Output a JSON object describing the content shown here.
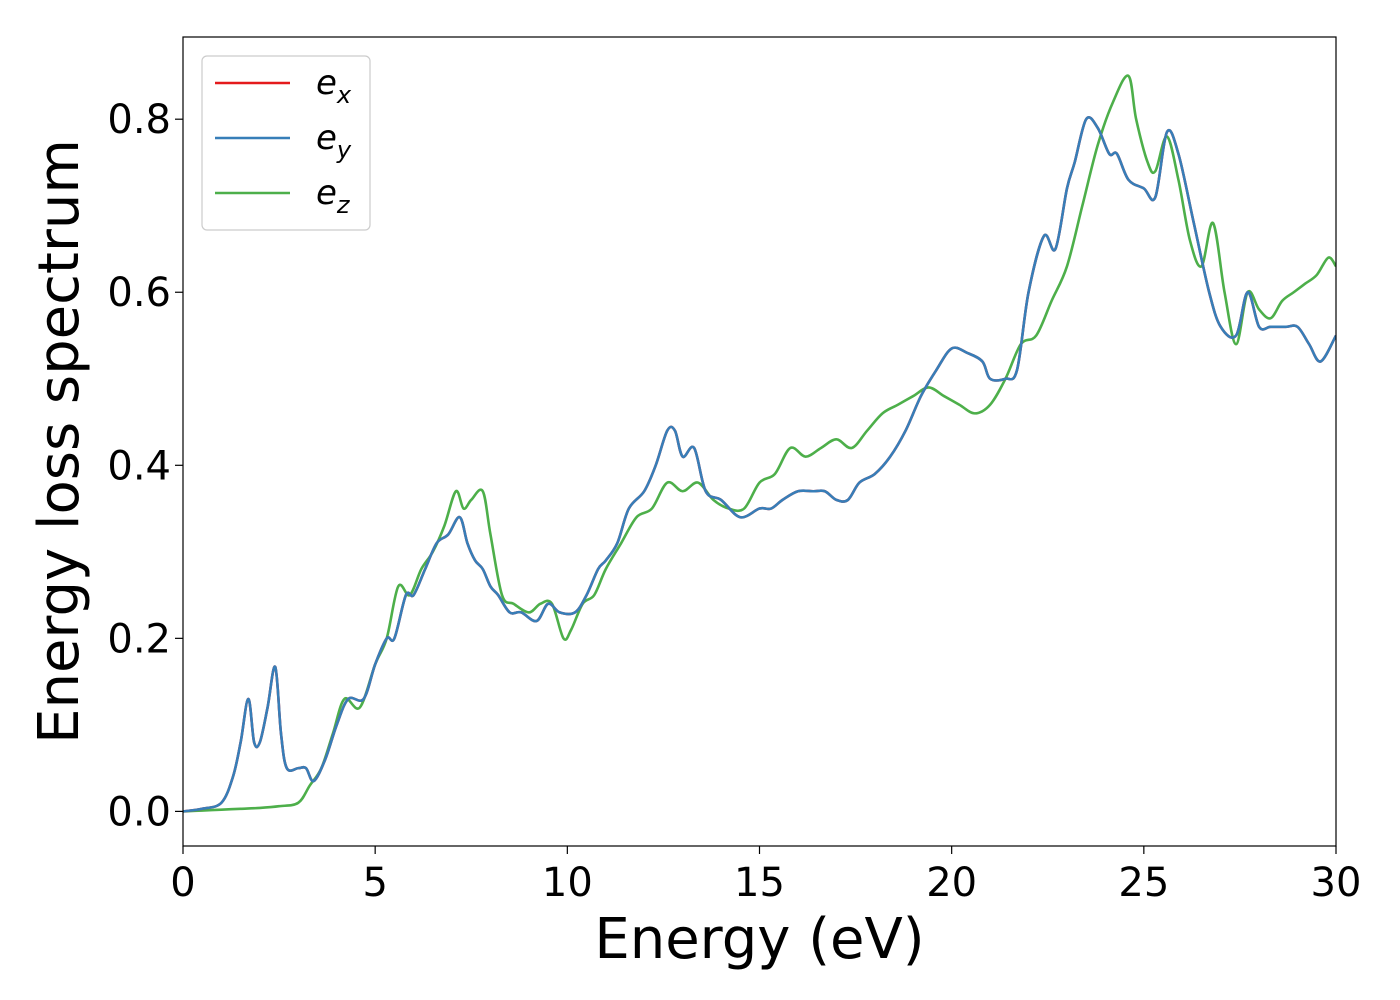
{
  "chart_data": {
    "type": "line",
    "xlabel": "Energy (eV)",
    "ylabel": "Energy loss spectrum",
    "xlim": [
      0,
      30
    ],
    "ylim": [
      -0.04,
      0.895
    ],
    "xticks": [
      0,
      5,
      10,
      15,
      20,
      25,
      30
    ],
    "xtick_labels": [
      "0",
      "5",
      "10",
      "15",
      "20",
      "25",
      "30"
    ],
    "yticks": [
      0.0,
      0.2,
      0.4,
      0.6,
      0.8
    ],
    "ytick_labels": [
      "0.0",
      "0.2",
      "0.4",
      "0.6",
      "0.8"
    ],
    "grid": false,
    "legend_position": "top-left",
    "series": [
      {
        "name": "e",
        "subscript": "x",
        "color": "#e41a1c",
        "x": [
          0,
          0.5,
          1.0,
          1.3,
          1.5,
          1.7,
          1.85,
          2.0,
          2.2,
          2.4,
          2.55,
          2.7,
          3.0,
          3.2,
          3.4,
          3.7,
          4.0,
          4.3,
          4.7,
          5.0,
          5.3,
          5.5,
          5.8,
          6.0,
          6.3,
          6.6,
          6.9,
          7.2,
          7.4,
          7.6,
          7.8,
          8.0,
          8.2,
          8.5,
          8.8,
          9.2,
          9.5,
          9.8,
          10.2,
          10.5,
          10.8,
          11.0,
          11.3,
          11.6,
          12.0,
          12.3,
          12.6,
          12.8,
          13.0,
          13.3,
          13.6,
          14.0,
          14.5,
          15.0,
          15.3,
          15.6,
          16.0,
          16.4,
          16.7,
          17.0,
          17.3,
          17.6,
          18.0,
          18.4,
          18.8,
          19.2,
          19.6,
          20.0,
          20.4,
          20.8,
          21.0,
          21.4,
          21.7,
          22.0,
          22.4,
          22.7,
          23.0,
          23.2,
          23.5,
          23.8,
          24.1,
          24.3,
          24.6,
          25.0,
          25.3,
          25.6,
          25.9,
          26.3,
          26.7,
          27.0,
          27.4,
          27.7,
          28.0,
          28.3,
          28.7,
          29.0,
          29.3,
          29.6,
          30.0
        ],
        "values": [
          0.0,
          0.003,
          0.01,
          0.04,
          0.08,
          0.13,
          0.08,
          0.08,
          0.12,
          0.167,
          0.09,
          0.05,
          0.05,
          0.05,
          0.035,
          0.06,
          0.1,
          0.13,
          0.13,
          0.17,
          0.2,
          0.2,
          0.25,
          0.25,
          0.28,
          0.31,
          0.32,
          0.34,
          0.31,
          0.29,
          0.28,
          0.26,
          0.25,
          0.23,
          0.23,
          0.22,
          0.24,
          0.23,
          0.23,
          0.25,
          0.28,
          0.29,
          0.31,
          0.35,
          0.37,
          0.4,
          0.44,
          0.44,
          0.41,
          0.42,
          0.37,
          0.36,
          0.34,
          0.35,
          0.35,
          0.36,
          0.37,
          0.37,
          0.37,
          0.36,
          0.36,
          0.38,
          0.39,
          0.41,
          0.44,
          0.48,
          0.51,
          0.535,
          0.53,
          0.52,
          0.5,
          0.5,
          0.51,
          0.6,
          0.665,
          0.65,
          0.72,
          0.75,
          0.8,
          0.79,
          0.76,
          0.76,
          0.73,
          0.72,
          0.71,
          0.785,
          0.76,
          0.68,
          0.6,
          0.56,
          0.55,
          0.6,
          0.56,
          0.56,
          0.56,
          0.56,
          0.54,
          0.52,
          0.55
        ]
      },
      {
        "name": "e",
        "subscript": "y",
        "color": "#377eb8",
        "x": [
          0,
          0.5,
          1.0,
          1.3,
          1.5,
          1.7,
          1.85,
          2.0,
          2.2,
          2.4,
          2.55,
          2.7,
          3.0,
          3.2,
          3.4,
          3.7,
          4.0,
          4.3,
          4.7,
          5.0,
          5.3,
          5.5,
          5.8,
          6.0,
          6.3,
          6.6,
          6.9,
          7.2,
          7.4,
          7.6,
          7.8,
          8.0,
          8.2,
          8.5,
          8.8,
          9.2,
          9.5,
          9.8,
          10.2,
          10.5,
          10.8,
          11.0,
          11.3,
          11.6,
          12.0,
          12.3,
          12.6,
          12.8,
          13.0,
          13.3,
          13.6,
          14.0,
          14.5,
          15.0,
          15.3,
          15.6,
          16.0,
          16.4,
          16.7,
          17.0,
          17.3,
          17.6,
          18.0,
          18.4,
          18.8,
          19.2,
          19.6,
          20.0,
          20.4,
          20.8,
          21.0,
          21.4,
          21.7,
          22.0,
          22.4,
          22.7,
          23.0,
          23.2,
          23.5,
          23.8,
          24.1,
          24.3,
          24.6,
          25.0,
          25.3,
          25.6,
          25.9,
          26.3,
          26.7,
          27.0,
          27.4,
          27.7,
          28.0,
          28.3,
          28.7,
          29.0,
          29.3,
          29.6,
          30.0
        ],
        "values": [
          0.0,
          0.003,
          0.01,
          0.04,
          0.08,
          0.13,
          0.08,
          0.08,
          0.12,
          0.167,
          0.09,
          0.05,
          0.05,
          0.05,
          0.035,
          0.06,
          0.1,
          0.13,
          0.13,
          0.17,
          0.2,
          0.2,
          0.25,
          0.25,
          0.28,
          0.31,
          0.32,
          0.34,
          0.31,
          0.29,
          0.28,
          0.26,
          0.25,
          0.23,
          0.23,
          0.22,
          0.24,
          0.23,
          0.23,
          0.25,
          0.28,
          0.29,
          0.31,
          0.35,
          0.37,
          0.4,
          0.44,
          0.44,
          0.41,
          0.42,
          0.37,
          0.36,
          0.34,
          0.35,
          0.35,
          0.36,
          0.37,
          0.37,
          0.37,
          0.36,
          0.36,
          0.38,
          0.39,
          0.41,
          0.44,
          0.48,
          0.51,
          0.535,
          0.53,
          0.52,
          0.5,
          0.5,
          0.51,
          0.6,
          0.665,
          0.65,
          0.72,
          0.75,
          0.8,
          0.79,
          0.76,
          0.76,
          0.73,
          0.72,
          0.71,
          0.785,
          0.76,
          0.68,
          0.6,
          0.56,
          0.55,
          0.6,
          0.56,
          0.56,
          0.56,
          0.56,
          0.54,
          0.52,
          0.55
        ]
      },
      {
        "name": "e",
        "subscript": "z",
        "color": "#4daf4a",
        "x": [
          0,
          0.5,
          1.0,
          1.5,
          2.0,
          2.5,
          3.0,
          3.3,
          3.6,
          3.9,
          4.2,
          4.6,
          5.0,
          5.3,
          5.6,
          5.9,
          6.2,
          6.5,
          6.8,
          7.1,
          7.3,
          7.5,
          7.8,
          8.0,
          8.3,
          8.6,
          9.0,
          9.3,
          9.6,
          9.9,
          10.1,
          10.4,
          10.7,
          11.0,
          11.4,
          11.8,
          12.2,
          12.6,
          13.0,
          13.4,
          13.8,
          14.2,
          14.6,
          15.0,
          15.4,
          15.8,
          16.2,
          16.6,
          17.0,
          17.4,
          17.8,
          18.2,
          18.6,
          19.0,
          19.4,
          19.8,
          20.2,
          20.6,
          21.0,
          21.4,
          21.8,
          22.2,
          22.6,
          23.0,
          23.4,
          23.8,
          24.2,
          24.6,
          24.8,
          25.1,
          25.3,
          25.6,
          25.9,
          26.2,
          26.5,
          26.8,
          27.1,
          27.4,
          27.7,
          28.0,
          28.3,
          28.6,
          28.9,
          29.2,
          29.5,
          29.8,
          30.0
        ],
        "values": [
          0.0,
          0.001,
          0.002,
          0.003,
          0.004,
          0.006,
          0.01,
          0.03,
          0.05,
          0.09,
          0.13,
          0.12,
          0.17,
          0.2,
          0.26,
          0.25,
          0.28,
          0.3,
          0.33,
          0.37,
          0.35,
          0.36,
          0.37,
          0.32,
          0.25,
          0.24,
          0.23,
          0.24,
          0.24,
          0.2,
          0.21,
          0.24,
          0.25,
          0.28,
          0.31,
          0.34,
          0.35,
          0.38,
          0.37,
          0.38,
          0.36,
          0.35,
          0.35,
          0.38,
          0.39,
          0.42,
          0.41,
          0.42,
          0.43,
          0.42,
          0.44,
          0.46,
          0.47,
          0.48,
          0.49,
          0.48,
          0.47,
          0.46,
          0.47,
          0.5,
          0.54,
          0.55,
          0.59,
          0.63,
          0.7,
          0.77,
          0.82,
          0.85,
          0.8,
          0.75,
          0.74,
          0.78,
          0.73,
          0.66,
          0.63,
          0.68,
          0.6,
          0.54,
          0.6,
          0.58,
          0.57,
          0.59,
          0.6,
          0.61,
          0.62,
          0.64,
          0.63
        ]
      }
    ]
  }
}
